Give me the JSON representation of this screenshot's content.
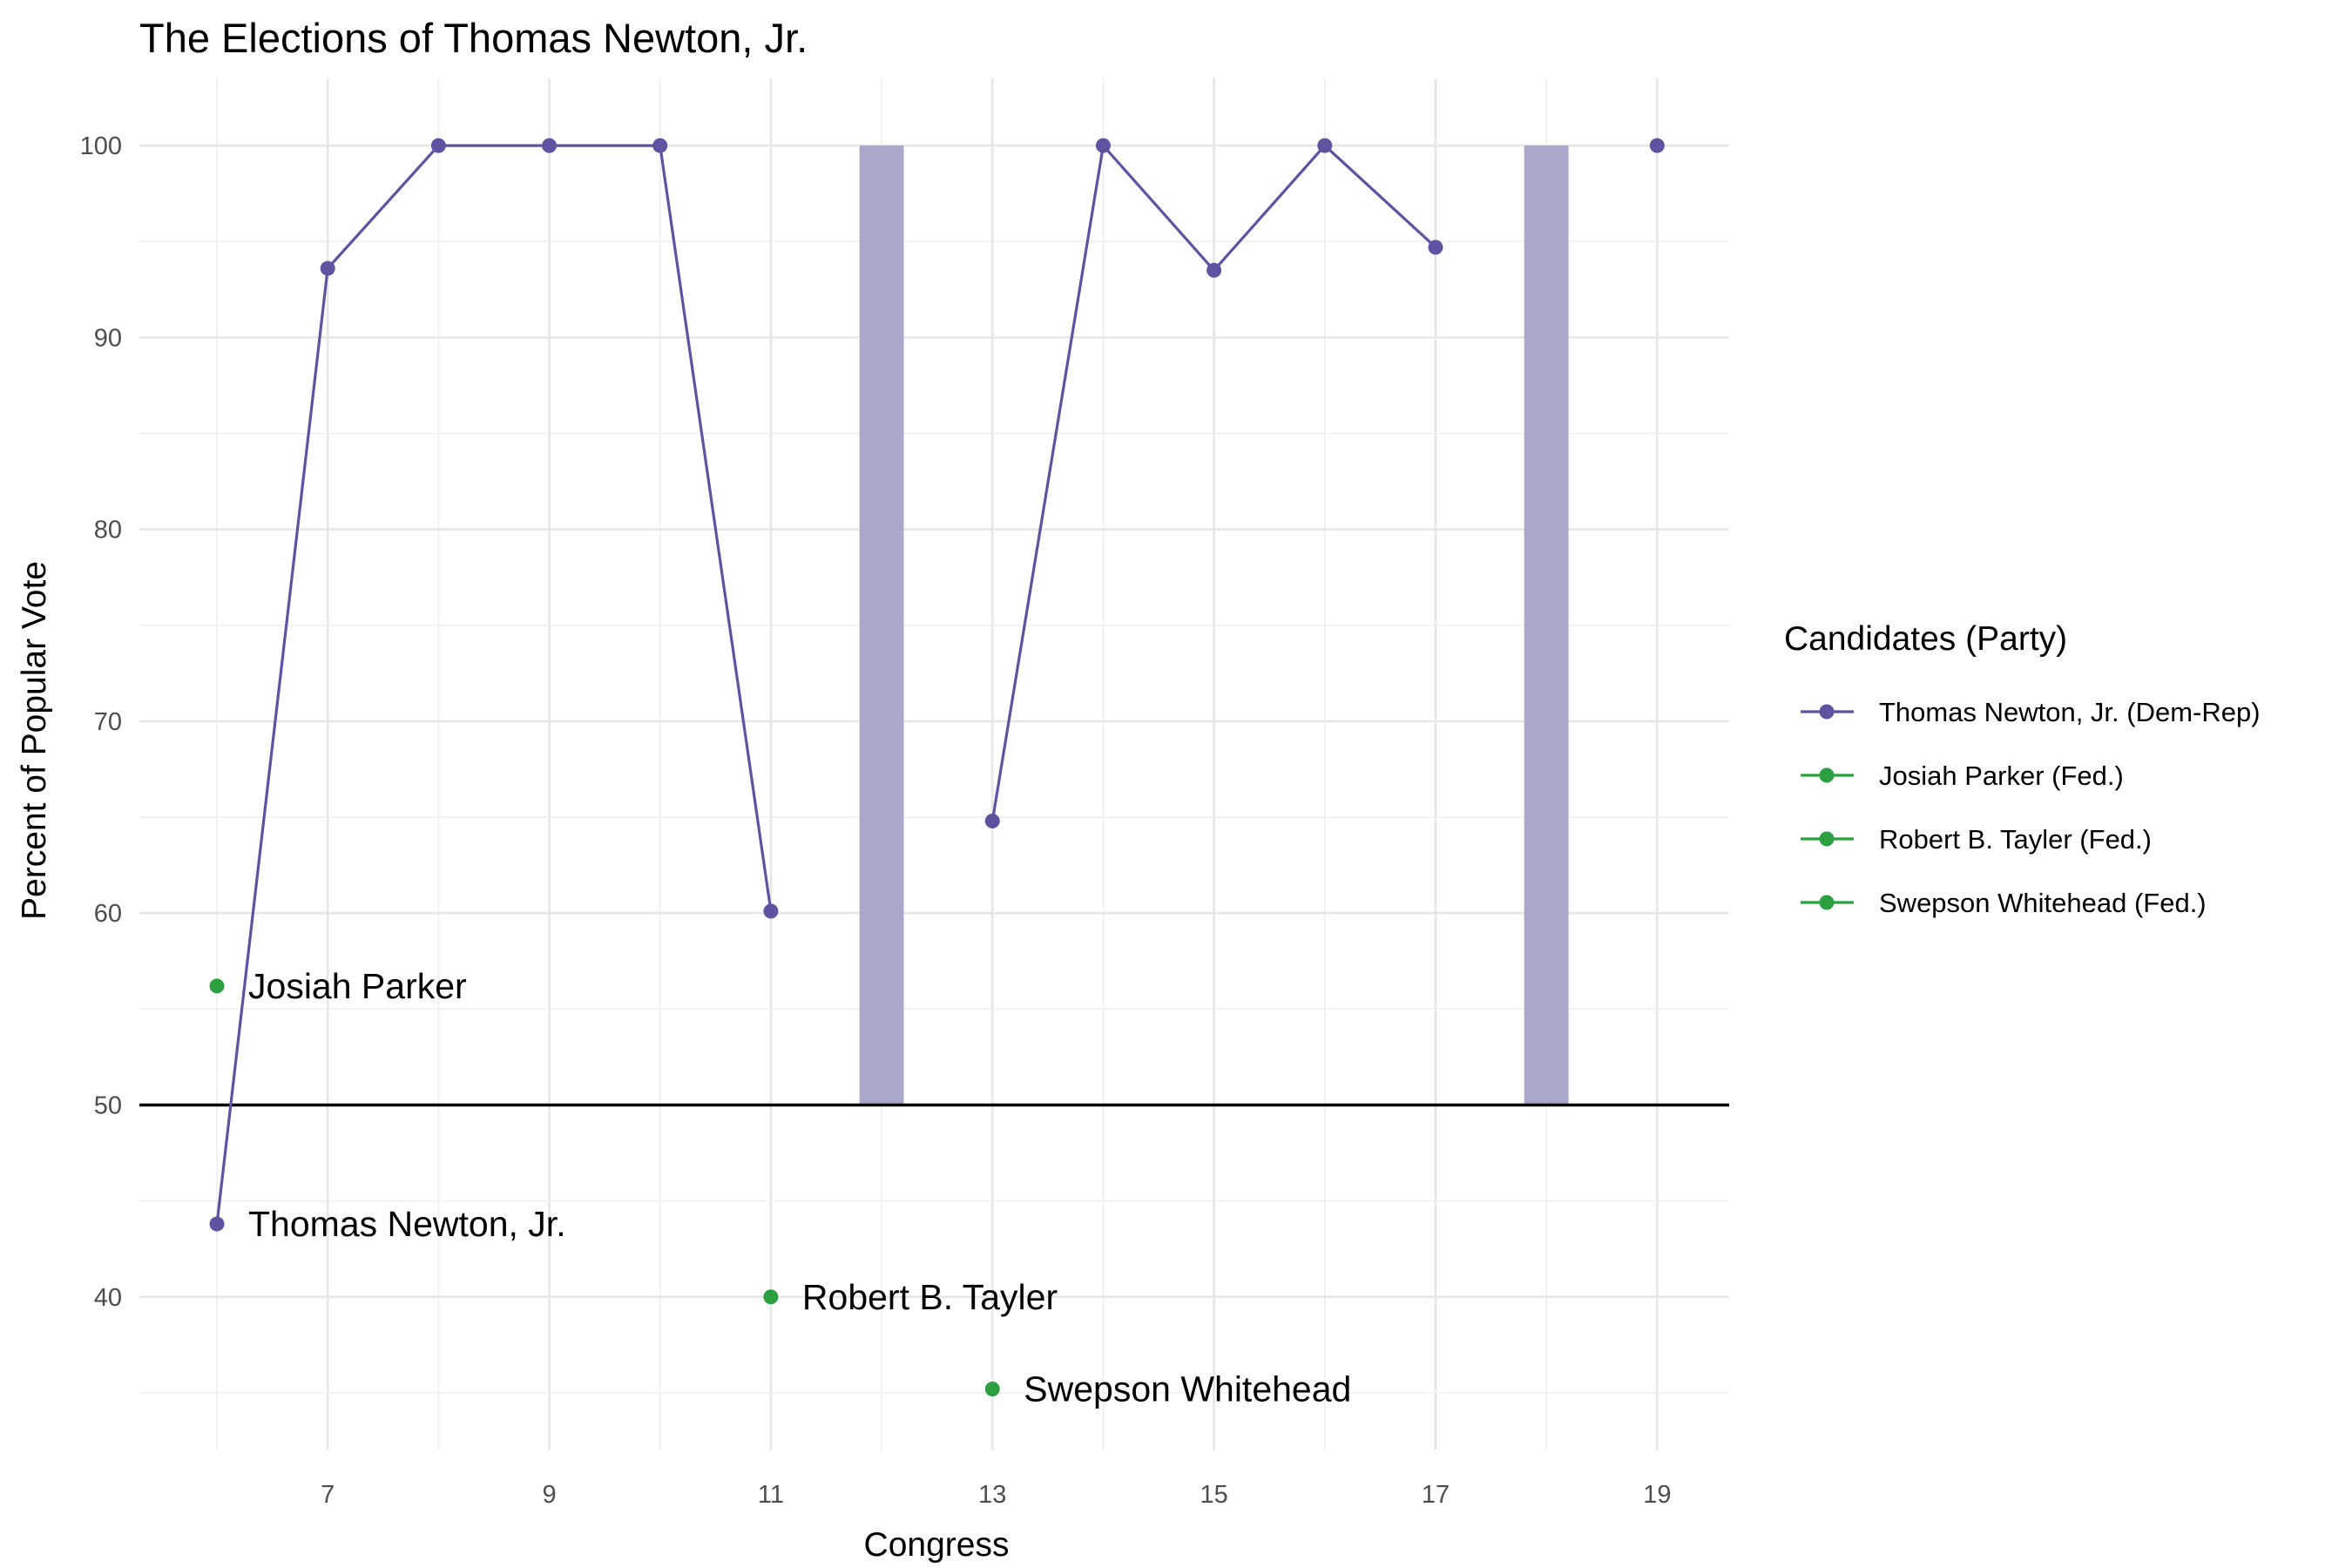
{
  "chart_data": {
    "type": "line",
    "title": "The Elections of Thomas Newton, Jr.",
    "xlabel": "Congress",
    "ylabel": "Percent of Popular Vote",
    "xlim": [
      5.3,
      19.65
    ],
    "ylim": [
      32,
      103.5
    ],
    "x_ticks": [
      7,
      9,
      11,
      13,
      15,
      17,
      19
    ],
    "y_ticks": [
      40,
      50,
      60,
      70,
      80,
      90,
      100
    ],
    "grid": true,
    "reference_line": 50,
    "legend_title": "Candidates (Party)",
    "legend_position": "right",
    "series": [
      {
        "name": "Thomas Newton, Jr. (Dem-Rep)",
        "color": "#5e53a1",
        "segments": [
          [
            [
              6,
              43.8
            ],
            [
              7,
              93.6
            ],
            [
              8,
              100
            ],
            [
              9,
              100
            ],
            [
              10,
              100
            ],
            [
              11,
              60.1
            ]
          ],
          [
            [
              13,
              64.8
            ],
            [
              14,
              100
            ],
            [
              15,
              93.5
            ],
            [
              16,
              100
            ],
            [
              17,
              94.7
            ]
          ],
          [
            [
              19,
              100
            ]
          ]
        ]
      },
      {
        "name": "Josiah Parker (Fed.)",
        "color": "#2ca040",
        "points": [
          [
            6,
            56.2
          ]
        ]
      },
      {
        "name": "Robert B. Tayler (Fed.)",
        "color": "#2ca040",
        "points": [
          [
            11,
            40.0
          ]
        ]
      },
      {
        "name": "Swepson Whitehead (Fed.)",
        "color": "#2ca040",
        "points": [
          [
            13,
            35.2
          ]
        ]
      }
    ],
    "uncontested_bars": {
      "color": "#a9a8cb",
      "bars": [
        {
          "x": 12,
          "from": 50,
          "to": 100
        },
        {
          "x": 18,
          "from": 50,
          "to": 100
        }
      ]
    },
    "annotations": [
      {
        "text": "Josiah Parker",
        "x": 6,
        "y": 56.2
      },
      {
        "text": "Thomas Newton, Jr.",
        "x": 6,
        "y": 43.8
      },
      {
        "text": "Robert B. Tayler",
        "x": 11,
        "y": 40.0
      },
      {
        "text": "Swepson Whitehead",
        "x": 13,
        "y": 35.2
      }
    ]
  }
}
